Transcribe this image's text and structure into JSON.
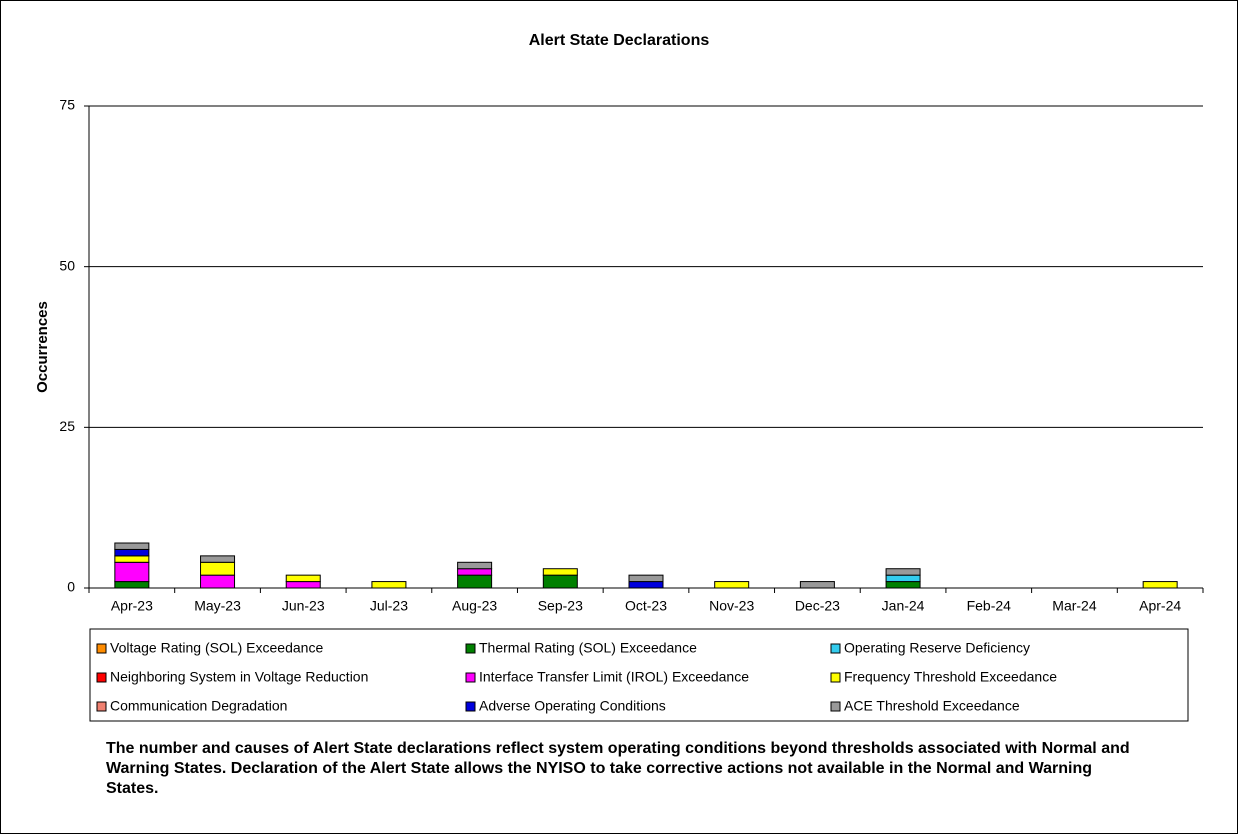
{
  "chart_data": {
    "type": "stacked_bar",
    "title": "Alert State Declarations",
    "y_label": "Occurrences",
    "categories": [
      "Apr-23",
      "May-23",
      "Jun-23",
      "Jul-23",
      "Aug-23",
      "Sep-23",
      "Oct-23",
      "Nov-23",
      "Dec-23",
      "Jan-24",
      "Feb-24",
      "Mar-24",
      "Apr-24"
    ],
    "series": [
      {
        "name": "Voltage Rating (SOL) Exceedance",
        "color": "#ff8c00",
        "values": [
          0,
          0,
          0,
          0,
          0,
          0,
          0,
          0,
          0,
          0,
          0,
          0,
          0
        ]
      },
      {
        "name": "Thermal Rating (SOL) Exceedance",
        "color": "#008000",
        "values": [
          1,
          0,
          0,
          0,
          2,
          2,
          0,
          0,
          0,
          1,
          0,
          0,
          0
        ]
      },
      {
        "name": "Operating Reserve Deficiency",
        "color": "#33ccee",
        "values": [
          0,
          0,
          0,
          0,
          0,
          0,
          0,
          0,
          0,
          1,
          0,
          0,
          0
        ]
      },
      {
        "name": "Neighboring System in Voltage Reduction",
        "color": "#ff0000",
        "values": [
          0,
          0,
          0,
          0,
          0,
          0,
          0,
          0,
          0,
          0,
          0,
          0,
          0
        ]
      },
      {
        "name": "Interface Transfer Limit (IROL) Exceedance",
        "color": "#ff00ff",
        "values": [
          3,
          2,
          1,
          0,
          1,
          0,
          0,
          0,
          0,
          0,
          0,
          0,
          0
        ]
      },
      {
        "name": "Frequency Threshold Exceedance",
        "color": "#ffff00",
        "values": [
          1,
          2,
          1,
          1,
          0,
          1,
          0,
          1,
          0,
          0,
          0,
          0,
          1
        ]
      },
      {
        "name": "Communication Degradation",
        "color": "#f08070",
        "values": [
          0,
          0,
          0,
          0,
          0,
          0,
          0,
          0,
          0,
          0,
          0,
          0,
          0
        ]
      },
      {
        "name": "Adverse Operating Conditions",
        "color": "#0000dd",
        "values": [
          1,
          0,
          0,
          0,
          0,
          0,
          1,
          0,
          0,
          0,
          0,
          0,
          0
        ]
      },
      {
        "name": "ACE Threshold Exceedance",
        "color": "#999999",
        "values": [
          1,
          1,
          0,
          0,
          1,
          0,
          1,
          0,
          1,
          1,
          0,
          0,
          0
        ]
      }
    ],
    "ylim": [
      0,
      75
    ],
    "yticks": [
      0,
      25,
      50,
      75
    ],
    "grid": true,
    "note": "The number and causes of Alert State declarations reflect system operating conditions beyond thresholds associated with Normal and Warning States.  Declaration of the Alert State allows the NYISO to take corrective actions not available in the Normal and Warning States."
  }
}
